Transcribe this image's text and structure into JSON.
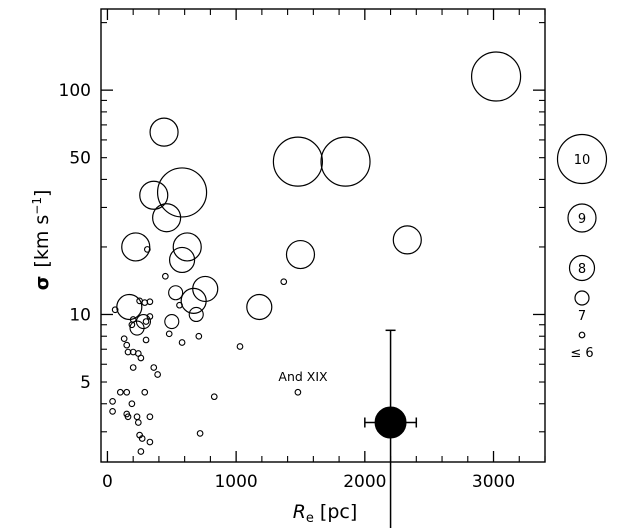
{
  "chart_data": {
    "type": "scatter",
    "x_scale": "linear",
    "y_scale": "log",
    "xlim": [
      -50,
      3400
    ],
    "ylim": [
      2.2,
      230
    ],
    "xticks": [
      0,
      1000,
      2000,
      3000
    ],
    "xtick_labels": [
      "0",
      "1000",
      "2000",
      "3000"
    ],
    "yticks": [
      5,
      10,
      50,
      100
    ],
    "ytick_labels": [
      "5",
      "10",
      "50",
      "100"
    ],
    "xlabel_main": "R",
    "xlabel_sub": "e",
    "xlabel_unit": "[pc]",
    "ylabel_symbol": "σ",
    "ylabel_unit": "[km s",
    "ylabel_exp": "−1",
    "ylabel_close": "]",
    "grid": false,
    "legend_placement": "right",
    "legend": [
      {
        "label": "10",
        "magnitude": 10
      },
      {
        "label": "9",
        "magnitude": 9
      },
      {
        "label": "8",
        "magnitude": 8
      },
      {
        "label": "7",
        "magnitude": 7
      },
      {
        "label": "≤ 6",
        "magnitude": 6
      }
    ],
    "annotation": {
      "text": "And XIX",
      "x": 1480,
      "y": 4.5
    },
    "highlight": {
      "x": 2200,
      "y": 3.3,
      "x_err": 200,
      "y_err_low": 1.0,
      "y_err_high": 8.5
    },
    "series": [
      {
        "points": [
          [
            3020,
            115,
            10
          ],
          [
            1480,
            48,
            10
          ],
          [
            1850,
            48,
            10
          ],
          [
            580,
            35,
            10
          ],
          [
            440,
            65,
            9
          ],
          [
            360,
            34,
            9
          ],
          [
            460,
            27,
            9
          ],
          [
            620,
            20,
            9
          ],
          [
            220,
            20,
            9
          ],
          [
            1500,
            18.5,
            9
          ],
          [
            2330,
            21.5,
            9
          ],
          [
            760,
            13,
            8
          ],
          [
            670,
            11.5,
            8
          ],
          [
            1180,
            10.8,
            8
          ],
          [
            170,
            10.8,
            8
          ],
          [
            580,
            17.5,
            8
          ],
          [
            530,
            12.5,
            7
          ],
          [
            690,
            10,
            7
          ],
          [
            500,
            9.3,
            7
          ],
          [
            280,
            9.3,
            7
          ],
          [
            230,
            8.7,
            7
          ],
          [
            60,
            10.5,
            6
          ],
          [
            250,
            11.5,
            6
          ],
          [
            290,
            11.3,
            6
          ],
          [
            330,
            11.4,
            6
          ],
          [
            310,
            19.5,
            6
          ],
          [
            450,
            14.8,
            6
          ],
          [
            300,
            9.3,
            6
          ],
          [
            330,
            9.8,
            6
          ],
          [
            200,
            9.5,
            6
          ],
          [
            190,
            9,
            6
          ],
          [
            560,
            11,
            6
          ],
          [
            480,
            8.2,
            6
          ],
          [
            300,
            7.7,
            6
          ],
          [
            580,
            7.5,
            6
          ],
          [
            710,
            8,
            6
          ],
          [
            1030,
            7.2,
            6
          ],
          [
            1370,
            14,
            6
          ],
          [
            130,
            7.8,
            6
          ],
          [
            150,
            7.3,
            6
          ],
          [
            160,
            6.8,
            6
          ],
          [
            200,
            6.8,
            6
          ],
          [
            240,
            6.7,
            6
          ],
          [
            260,
            6.4,
            6
          ],
          [
            200,
            5.8,
            6
          ],
          [
            360,
            5.8,
            6
          ],
          [
            390,
            5.4,
            6
          ],
          [
            830,
            4.3,
            6
          ],
          [
            100,
            4.5,
            6
          ],
          [
            150,
            4.5,
            6
          ],
          [
            290,
            4.5,
            6
          ],
          [
            40,
            4.1,
            6
          ],
          [
            190,
            4.0,
            6
          ],
          [
            40,
            3.7,
            6
          ],
          [
            150,
            3.6,
            6
          ],
          [
            160,
            3.5,
            6
          ],
          [
            230,
            3.5,
            6
          ],
          [
            330,
            3.5,
            6
          ],
          [
            240,
            3.3,
            6
          ],
          [
            250,
            2.9,
            6
          ],
          [
            270,
            2.8,
            6
          ],
          [
            330,
            2.7,
            6
          ],
          [
            720,
            2.95,
            6
          ],
          [
            260,
            2.45,
            6
          ],
          [
            1480,
            4.5,
            6
          ]
        ]
      }
    ]
  }
}
